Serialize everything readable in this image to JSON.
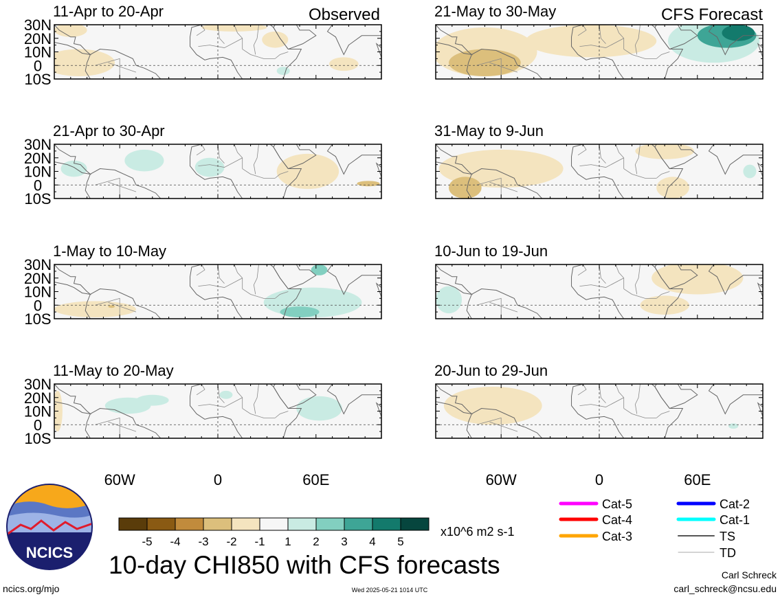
{
  "figure": {
    "title": "10-day CHI850 with CFS forecasts",
    "source_url": "ncics.org/mjo",
    "timestamp": "Wed 2025-05-21 1014 UTC",
    "author": "Carl Schreck",
    "email": "carl_schreck@ncsu.edu",
    "logo_text": "NCICS"
  },
  "column_labels": {
    "observed": "Observed",
    "forecast": "CFS Forecast"
  },
  "axes": {
    "lat_ticks": [
      "30N",
      "20N",
      "10N",
      "0",
      "10S"
    ],
    "lon_ticks": [
      "60W",
      "0",
      "60E"
    ]
  },
  "colorbar": {
    "unit": "x10^6 m2 s-1",
    "tick_labels": [
      "-5",
      "-4",
      "-3",
      "-2",
      "-1",
      "1",
      "2",
      "3",
      "4",
      "5"
    ],
    "colors": [
      "#5a3c0a",
      "#8a5a13",
      "#c18b3c",
      "#dcbf7c",
      "#f4e4bf",
      "#f6f6f6",
      "#c9ebe3",
      "#82cfc0",
      "#3ea596",
      "#137a6c",
      "#06463e"
    ]
  },
  "storm_legend": [
    {
      "label": "Cat-5",
      "color": "#ff00ff"
    },
    {
      "label": "Cat-4",
      "color": "#ff0000"
    },
    {
      "label": "Cat-3",
      "color": "#ffa500"
    },
    {
      "label": "Cat-2",
      "color": "#0000ff"
    },
    {
      "label": "Cat-1",
      "color": "#00ffff"
    },
    {
      "label": "TS",
      "color": "#555555"
    },
    {
      "label": "TD",
      "color": "#aaaaaa"
    }
  ],
  "chart_data": [
    {
      "type": "heatmap",
      "panel": "observed",
      "title": "11-Apr to 20-Apr",
      "lon_range": [
        -100,
        100
      ],
      "lat_range": [
        -10,
        30
      ],
      "anomalies": [
        {
          "lon": -85,
          "lat": 2,
          "rx": 22,
          "ry": 10,
          "value": -1.3
        },
        {
          "lon": -90,
          "lat": 26,
          "rx": 10,
          "ry": 5,
          "value": -1.2
        },
        {
          "lon": 10,
          "lat": 28,
          "rx": 20,
          "ry": 3,
          "value": -1.2
        },
        {
          "lon": 35,
          "lat": 19,
          "rx": 8,
          "ry": 6,
          "value": -1.3
        },
        {
          "lon": 77,
          "lat": 1,
          "rx": 9,
          "ry": 5,
          "value": -1.3
        },
        {
          "lon": 40,
          "lat": -4,
          "rx": 4,
          "ry": 3,
          "value": 1.5
        }
      ]
    },
    {
      "type": "heatmap",
      "panel": "observed",
      "title": "21-Apr to 30-Apr",
      "lon_range": [
        -100,
        100
      ],
      "lat_range": [
        -10,
        30
      ],
      "anomalies": [
        {
          "lon": -45,
          "lat": 18,
          "rx": 12,
          "ry": 8,
          "value": 1.3
        },
        {
          "lon": -88,
          "lat": 12,
          "rx": 8,
          "ry": 6,
          "value": 1.2
        },
        {
          "lon": -5,
          "lat": 13,
          "rx": 9,
          "ry": 7,
          "value": 1.3
        },
        {
          "lon": 55,
          "lat": 10,
          "rx": 19,
          "ry": 13,
          "value": -1.5
        },
        {
          "lon": 92,
          "lat": 1,
          "rx": 7,
          "ry": 2,
          "value": -2.2
        }
      ]
    },
    {
      "type": "heatmap",
      "panel": "observed",
      "title": "1-May to 10-May",
      "lon_range": [
        -100,
        100
      ],
      "lat_range": [
        -10,
        30
      ],
      "anomalies": [
        {
          "lon": -75,
          "lat": -3,
          "rx": 25,
          "ry": 6,
          "value": -1.4
        },
        {
          "lon": -65,
          "lat": -1,
          "rx": 2,
          "ry": 1,
          "value": -2.3
        },
        {
          "lon": 58,
          "lat": 2,
          "rx": 30,
          "ry": 11,
          "value": 1.5
        },
        {
          "lon": 50,
          "lat": -5,
          "rx": 12,
          "ry": 4,
          "value": 2.4
        },
        {
          "lon": 62,
          "lat": 26,
          "rx": 5,
          "ry": 4,
          "value": 2.2
        }
      ]
    },
    {
      "type": "heatmap",
      "panel": "observed",
      "title": "11-May to 20-May",
      "lon_range": [
        -100,
        100
      ],
      "lat_range": [
        -10,
        30
      ],
      "anomalies": [
        {
          "lon": -98,
          "lat": 10,
          "rx": 3,
          "ry": 15,
          "value": -1.3
        },
        {
          "lon": -55,
          "lat": 14,
          "rx": 14,
          "ry": 6,
          "value": 1.4
        },
        {
          "lon": -40,
          "lat": 18,
          "rx": 10,
          "ry": 4,
          "value": 1.3
        },
        {
          "lon": 62,
          "lat": 12,
          "rx": 14,
          "ry": 9,
          "value": 1.4
        },
        {
          "lon": 5,
          "lat": 22,
          "rx": 4,
          "ry": 3,
          "value": 1.2
        }
      ]
    },
    {
      "type": "heatmap",
      "panel": "forecast",
      "title": "21-May to 30-May",
      "lon_range": [
        -100,
        100
      ],
      "lat_range": [
        -10,
        30
      ],
      "anomalies": [
        {
          "lon": -70,
          "lat": 10,
          "rx": 32,
          "ry": 18,
          "value": -1.6
        },
        {
          "lon": -70,
          "lat": 2,
          "rx": 22,
          "ry": 10,
          "value": -2.3
        },
        {
          "lon": -5,
          "lat": 18,
          "rx": 40,
          "ry": 12,
          "value": -1.3
        },
        {
          "lon": 70,
          "lat": 18,
          "rx": 28,
          "ry": 16,
          "value": 1.6
        },
        {
          "lon": 78,
          "lat": 22,
          "rx": 18,
          "ry": 9,
          "value": 3.3
        },
        {
          "lon": 85,
          "lat": 24,
          "rx": 10,
          "ry": 6,
          "value": 4.4
        }
      ]
    },
    {
      "type": "heatmap",
      "panel": "forecast",
      "title": "31-May to 9-Jun",
      "lon_range": [
        -100,
        100
      ],
      "lat_range": [
        -10,
        30
      ],
      "anomalies": [
        {
          "lon": -60,
          "lat": 12,
          "rx": 38,
          "ry": 14,
          "value": -1.3
        },
        {
          "lon": -82,
          "lat": -2,
          "rx": 10,
          "ry": 8,
          "value": -2.3
        },
        {
          "lon": 40,
          "lat": 25,
          "rx": 18,
          "ry": 6,
          "value": -1.3
        },
        {
          "lon": 45,
          "lat": -2,
          "rx": 10,
          "ry": 8,
          "value": -1.3
        },
        {
          "lon": 92,
          "lat": 10,
          "rx": 4,
          "ry": 5,
          "value": 1.2
        }
      ]
    },
    {
      "type": "heatmap",
      "panel": "forecast",
      "title": "10-Jun to 19-Jun",
      "lon_range": [
        -100,
        100
      ],
      "lat_range": [
        -10,
        30
      ],
      "anomalies": [
        {
          "lon": 60,
          "lat": 20,
          "rx": 28,
          "ry": 12,
          "value": -1.4
        },
        {
          "lon": 40,
          "lat": 0,
          "rx": 15,
          "ry": 7,
          "value": -1.3
        },
        {
          "lon": -92,
          "lat": 4,
          "rx": 8,
          "ry": 10,
          "value": 1.3
        }
      ]
    },
    {
      "type": "heatmap",
      "panel": "forecast",
      "title": "20-Jun to 29-Jun",
      "lon_range": [
        -100,
        100
      ],
      "lat_range": [
        -10,
        30
      ],
      "anomalies": [
        {
          "lon": -65,
          "lat": 14,
          "rx": 30,
          "ry": 14,
          "value": -1.3
        },
        {
          "lon": 82,
          "lat": -1,
          "rx": 3,
          "ry": 2,
          "value": 1.4
        }
      ]
    }
  ]
}
